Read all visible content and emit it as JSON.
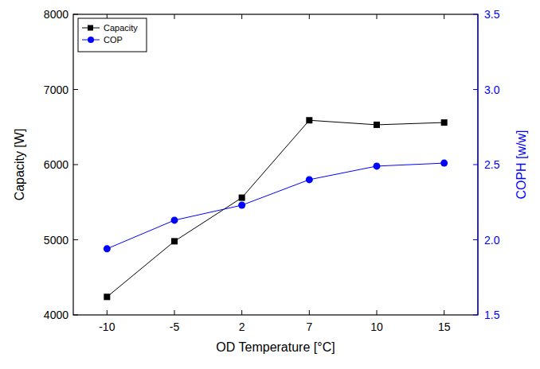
{
  "chart_data": {
    "type": "line",
    "x_label": "OD Temperature [°C]",
    "y_label": "Capacity [W]",
    "y2_label": "COPH [w/w]",
    "categories": [
      "-10",
      "-5",
      "2",
      "7",
      "10",
      "15"
    ],
    "series": [
      {
        "name": "Capacity",
        "color": "#000000",
        "marker": "square",
        "line_style": "solid",
        "values": [
          4240,
          4980,
          5560,
          6590,
          6530,
          6560
        ]
      },
      {
        "name": "COP",
        "color": "#0000ff",
        "marker": "circle",
        "line_style": "solid",
        "axis": "y2",
        "values": [
          1.94,
          2.13,
          2.23,
          2.4,
          2.49,
          2.51
        ]
      }
    ],
    "ylim": [
      4000,
      8000
    ],
    "yticks": [
      4000,
      5000,
      6000,
      7000,
      8000
    ],
    "y2lim": [
      1.5,
      3.5
    ],
    "y2ticks": [
      1.5,
      {
        "value": 2,
        "label": "2.0"
      },
      2.5,
      {
        "value": 3,
        "label": "3.0"
      },
      3.5
    ],
    "legend": "upper left",
    "grid": false
  }
}
